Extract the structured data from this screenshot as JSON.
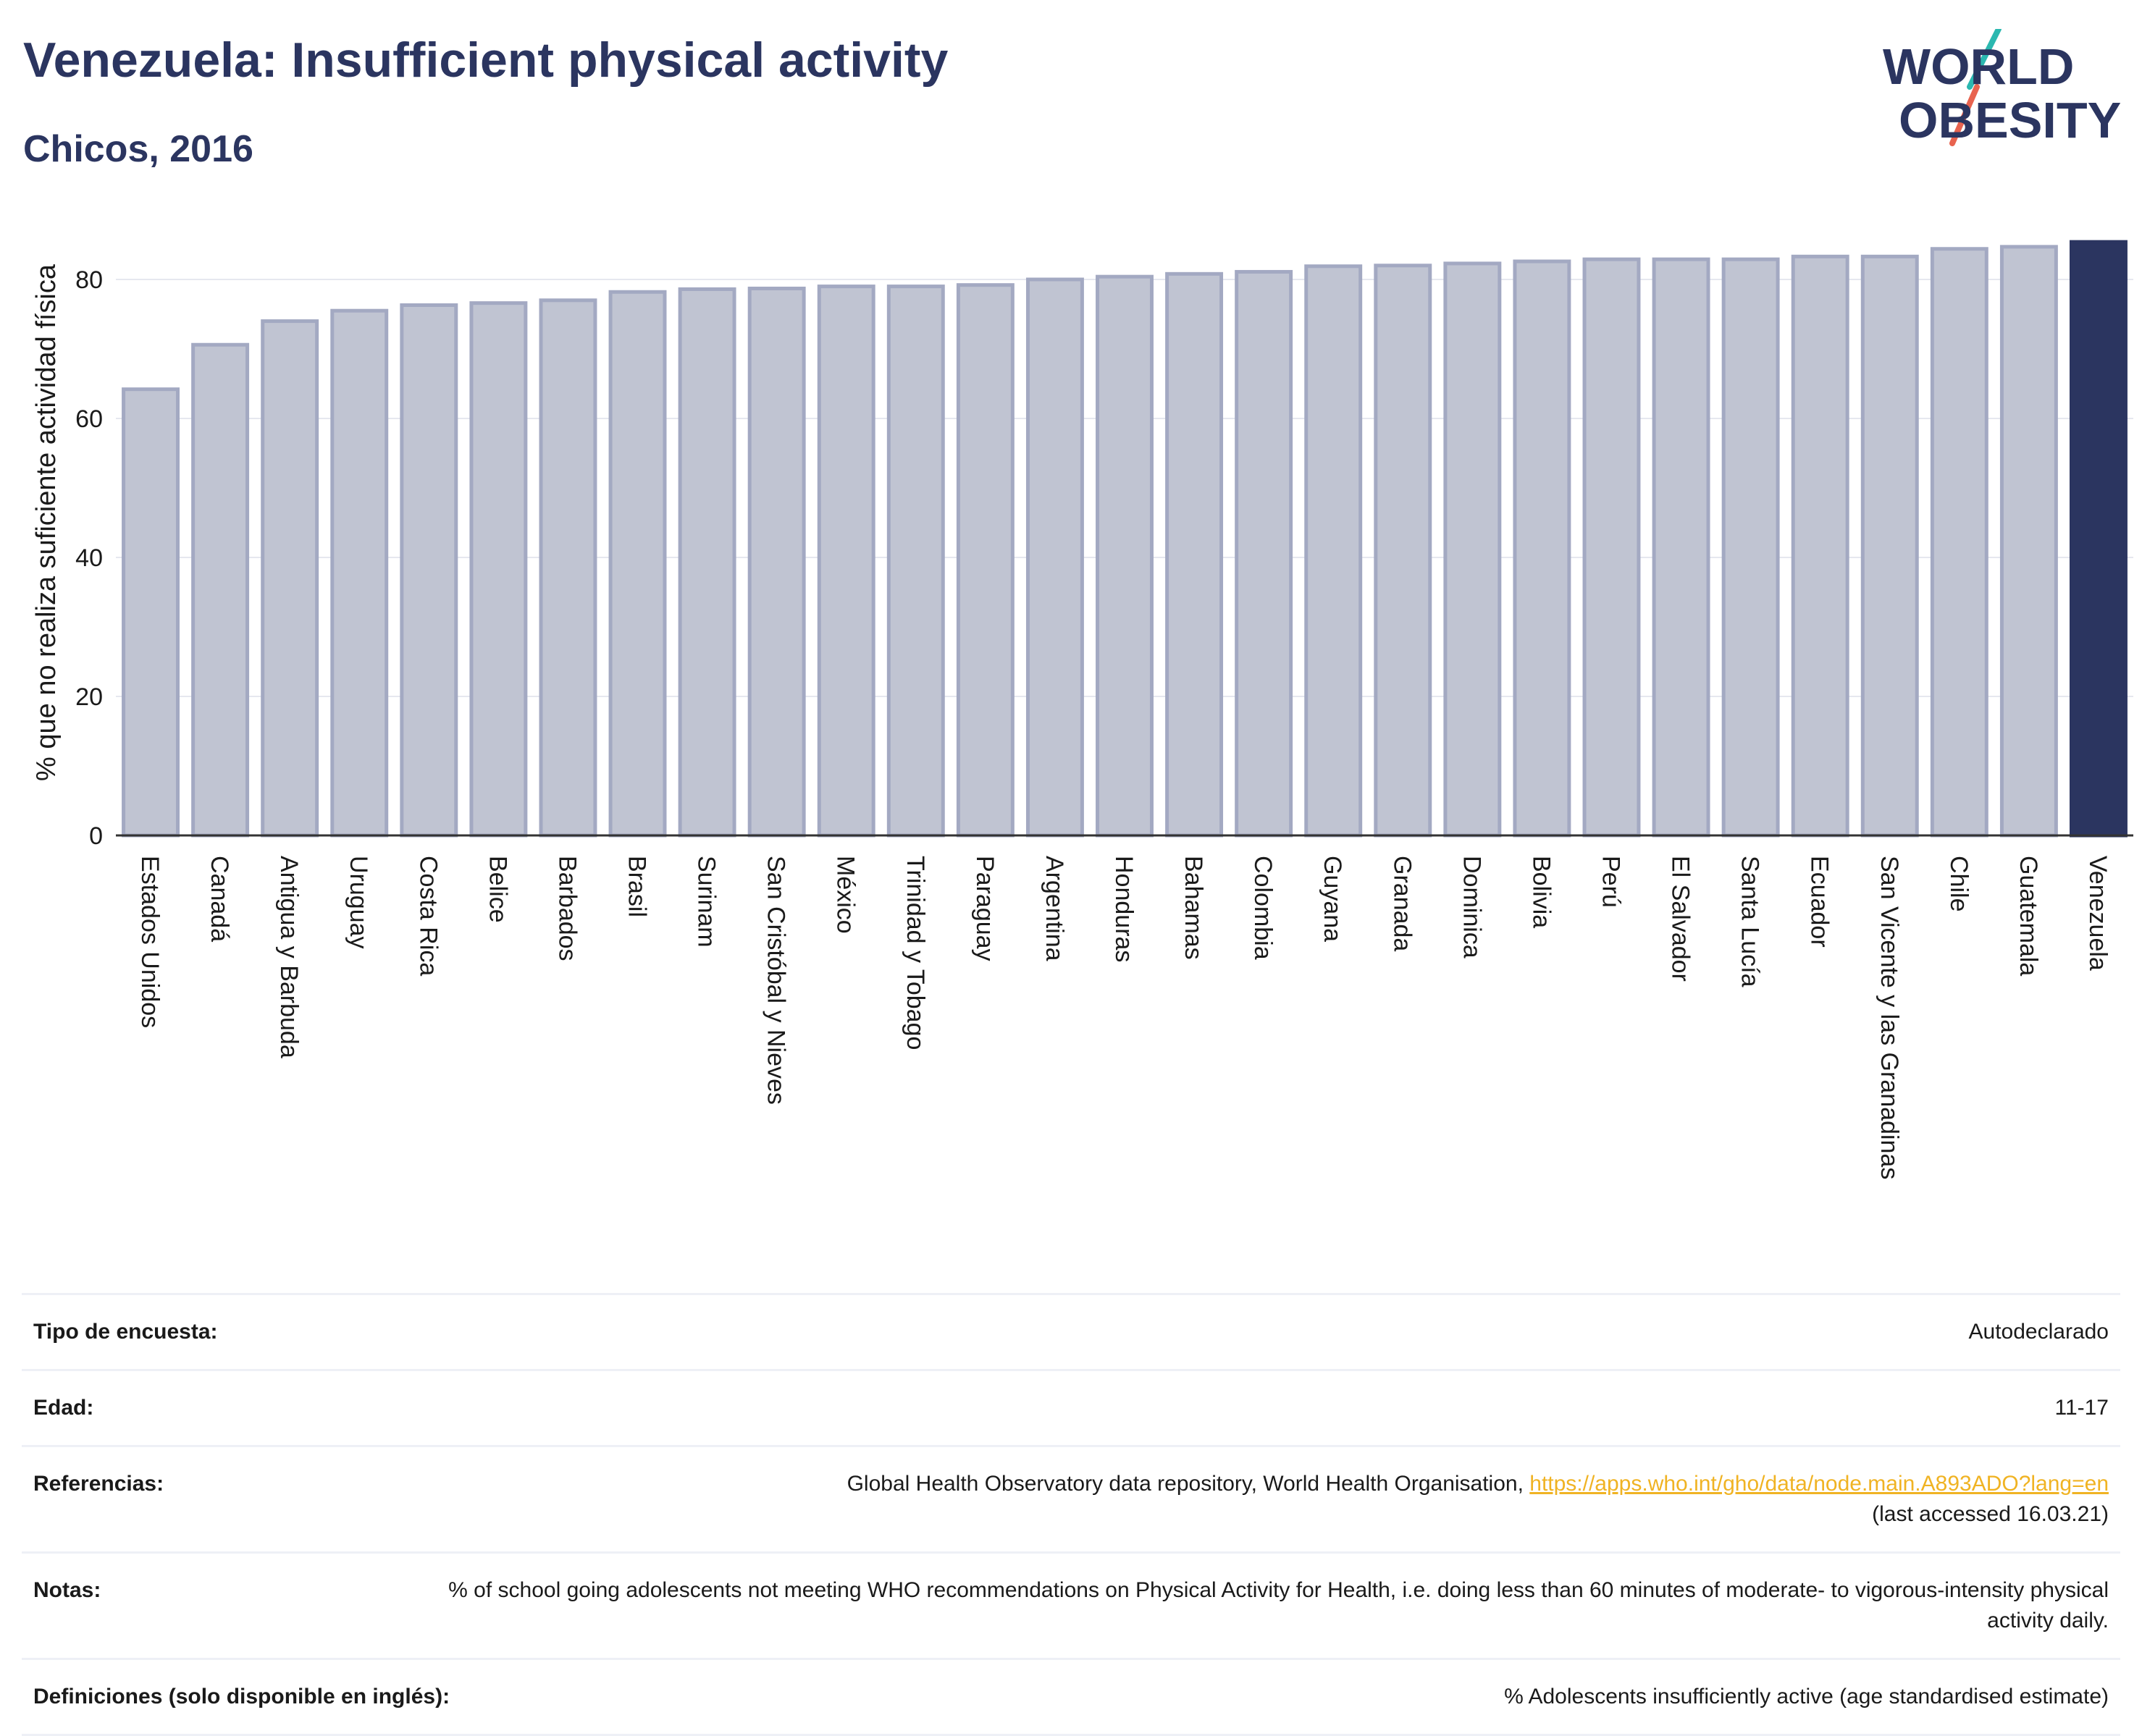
{
  "header": {
    "title": "Venezuela: Insufficient physical activity",
    "subtitle": "Chicos, 2016"
  },
  "logo": {
    "line1": "WORLD",
    "line2": "OBESITY"
  },
  "chart_data": {
    "type": "bar",
    "ylabel": "% que no realiza suficiente actividad física",
    "xlabel": "",
    "ylim": [
      0,
      90
    ],
    "yticks": [
      0,
      20,
      40,
      60,
      80
    ],
    "grid": true,
    "categories": [
      "Estados Unidos",
      "Canadá",
      "Antigua y Barbuda",
      "Uruguay",
      "Costa Rica",
      "Belice",
      "Barbados",
      "Brasil",
      "Surinam",
      "San Cristóbal y Nieves",
      "México",
      "Trinidad y Tobago",
      "Paraguay",
      "Argentina",
      "Honduras",
      "Bahamas",
      "Colombia",
      "Guyana",
      "Granada",
      "Dominica",
      "Bolivia",
      "Perú",
      "El Salvador",
      "Santa Lucía",
      "Ecuador",
      "San Vicente y las Granadinas",
      "Chile",
      "Guatemala",
      "Venezuela"
    ],
    "values": [
      64.2,
      70.6,
      74.0,
      75.5,
      76.3,
      76.6,
      77.0,
      78.2,
      78.6,
      78.7,
      79.0,
      79.0,
      79.2,
      80.0,
      80.4,
      80.8,
      81.1,
      81.9,
      82.0,
      82.3,
      82.6,
      82.9,
      82.9,
      82.9,
      83.3,
      83.3,
      84.4,
      84.7,
      85.4
    ],
    "highlight": "Venezuela",
    "colors": {
      "bar": "#c0c4d2",
      "bar_border": "#a3a9c2",
      "highlight": "#2b3560",
      "grid": "#e6e8ef",
      "axis": "#333333"
    }
  },
  "info": {
    "survey_type": {
      "label": "Tipo de encuesta:",
      "value": "Autodeclarado"
    },
    "age": {
      "label": "Edad:",
      "value": "11-17"
    },
    "references": {
      "label": "Referencias:",
      "text_before": "Global Health Observatory data repository, World Health Organisation, ",
      "link": "https://apps.who.int/gho/data/node.main.A893ADO?lang=en",
      "text_after": "(last accessed 16.03.21)"
    },
    "notes": {
      "label": "Notas:",
      "value": "% of school going adolescents not meeting WHO recommendations on Physical Activity for Health, i.e. doing less than 60 minutes of moderate- to vigorous-intensity physical activity daily."
    },
    "definitions": {
      "label": "Definiciones (solo disponible en inglés):",
      "value": "% Adolescents insufficiently active (age standardised estimate)"
    }
  }
}
